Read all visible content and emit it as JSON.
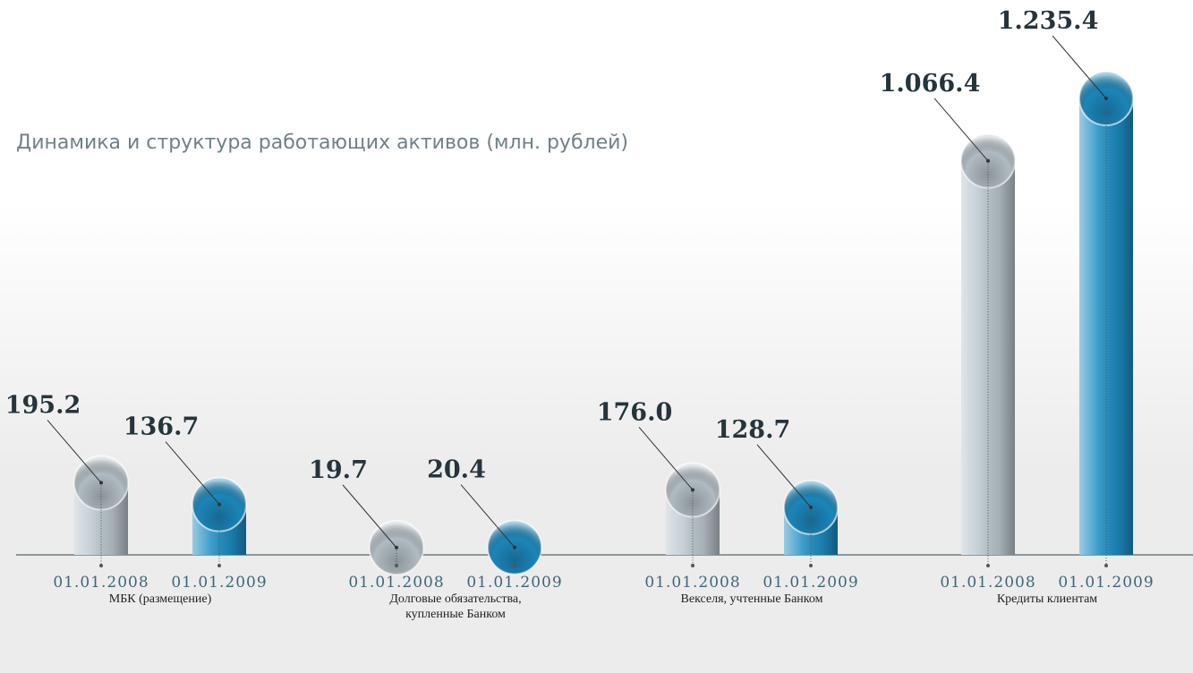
{
  "chart_data": {
    "type": "bar",
    "title": "Динамика и структура работающих активов (млн. рублей)",
    "categories": [
      "МБК (размещение)",
      "Долговые обязательства, купленные Банком",
      "Векселя, учтенные Банком",
      "Кредиты клиентам"
    ],
    "series": [
      {
        "name": "01.01.2008",
        "color": "#b9c5cc",
        "values": [
          195.2,
          19.7,
          176.0,
          1066.4
        ],
        "value_labels": [
          "195.2",
          "19.7",
          "176.0",
          "1.066.4"
        ]
      },
      {
        "name": "01.01.2009",
        "color": "#1d8cc2",
        "values": [
          136.7,
          20.4,
          128.7,
          1235.4
        ],
        "value_labels": [
          "136.7",
          "20.4",
          "128.7",
          "1.235.4"
        ]
      }
    ]
  }
}
